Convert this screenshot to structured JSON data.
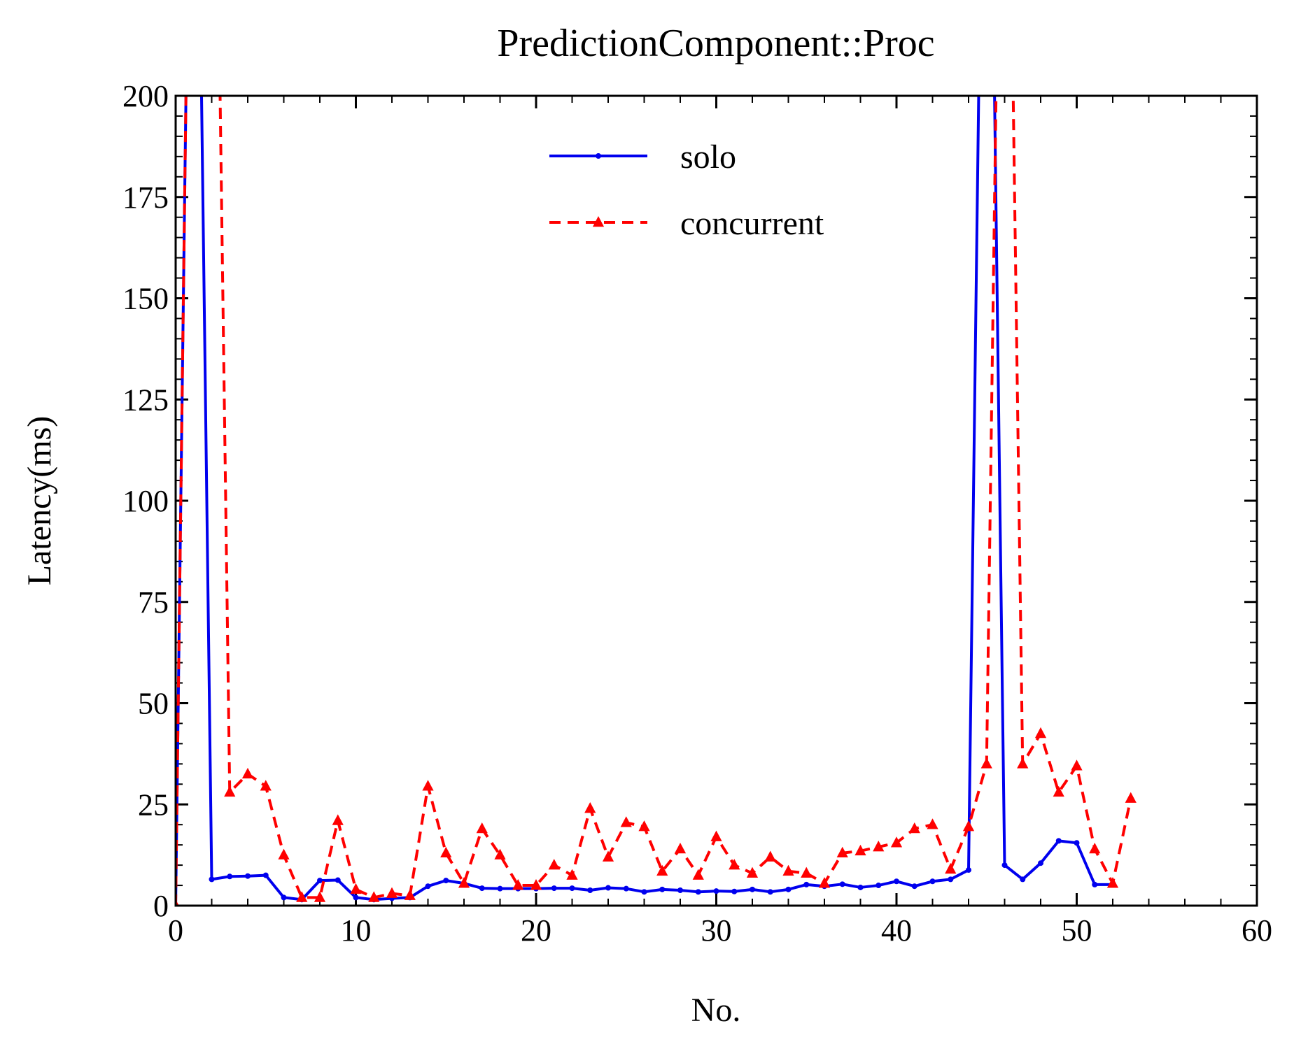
{
  "chart_data": {
    "type": "line",
    "title": "PredictionComponent::Proc",
    "xlabel": "No.",
    "ylabel": "Latency(ms)",
    "xlim": [
      0,
      60
    ],
    "ylim": [
      0,
      200
    ],
    "xticks": [
      0,
      10,
      20,
      30,
      40,
      50,
      60
    ],
    "yticks": [
      0,
      25,
      50,
      75,
      100,
      125,
      150,
      175,
      200
    ],
    "grid": false,
    "legend_position": "top-center",
    "series": [
      {
        "name": "solo",
        "color": "#0000ee",
        "line_style": "solid",
        "marker": "dot",
        "x": [
          0,
          1,
          2,
          3,
          4,
          5,
          6,
          7,
          8,
          9,
          10,
          11,
          12,
          13,
          14,
          15,
          16,
          17,
          18,
          19,
          20,
          21,
          22,
          23,
          24,
          25,
          26,
          27,
          28,
          29,
          30,
          31,
          32,
          33,
          34,
          35,
          36,
          37,
          38,
          39,
          40,
          41,
          42,
          43,
          44,
          45,
          46,
          47,
          48,
          49,
          50,
          51,
          52
        ],
        "y": [
          0,
          350,
          6.5,
          7.2,
          7.3,
          7.5,
          2,
          1.5,
          6.2,
          6.3,
          2,
          1.5,
          1.8,
          2,
          4.8,
          6.2,
          5.5,
          4.3,
          4.2,
          4.2,
          4.2,
          4.3,
          4.3,
          3.8,
          4.4,
          4.2,
          3.4,
          4,
          3.8,
          3.4,
          3.6,
          3.5,
          4,
          3.4,
          4,
          5.2,
          4.8,
          5.3,
          4.5,
          5,
          6,
          4.8,
          6,
          6.5,
          8.8,
          350,
          10,
          6.5,
          10.5,
          16,
          15.5,
          5.2,
          5.2
        ]
      },
      {
        "name": "concurrent",
        "color": "#ff0000",
        "line_style": "dashed",
        "marker": "triangle",
        "x": [
          0,
          1,
          2,
          3,
          4,
          5,
          6,
          7,
          8,
          9,
          10,
          11,
          12,
          13,
          14,
          15,
          16,
          17,
          18,
          19,
          20,
          21,
          22,
          23,
          24,
          25,
          26,
          27,
          28,
          29,
          30,
          31,
          32,
          33,
          34,
          35,
          36,
          37,
          38,
          39,
          40,
          41,
          42,
          43,
          44,
          45,
          46,
          47,
          48,
          49,
          50,
          51,
          52,
          53
        ],
        "y": [
          0,
          350,
          350,
          28,
          32.5,
          29.5,
          12.5,
          2,
          2,
          21,
          4,
          2,
          3,
          2.5,
          29.5,
          13,
          5.5,
          19,
          12.5,
          5,
          5,
          10,
          7.5,
          24,
          12,
          20.5,
          19.5,
          8.5,
          14,
          7.5,
          17,
          10,
          8,
          12,
          8.5,
          8,
          5.5,
          13,
          13.5,
          14.5,
          15.5,
          19,
          20,
          9,
          19.5,
          35,
          350,
          35,
          42.5,
          28,
          34.5,
          14,
          5.5,
          26.5
        ]
      }
    ]
  }
}
